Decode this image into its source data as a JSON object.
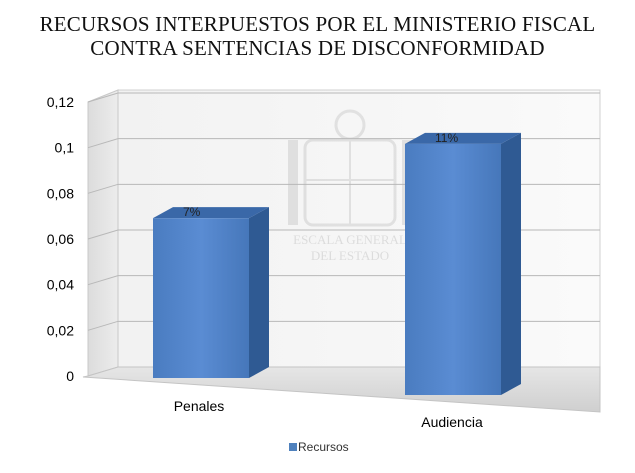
{
  "chart_data": {
    "type": "bar",
    "title_lines": [
      "RECURSOS INTERPUESTOS POR EL MINISTERIO FISCAL",
      "CONTRA SENTENCIAS DE DISCONFORMIDAD"
    ],
    "categories": [
      "Penales",
      "Audiencia"
    ],
    "series": [
      {
        "name": "Recursos",
        "values": [
          0.07,
          0.11
        ],
        "data_labels": [
          "7%",
          "11%"
        ]
      }
    ],
    "ylim": [
      0,
      0.12
    ],
    "yticks": [
      "0",
      "0,02",
      "0,04",
      "0,06",
      "0,08",
      "0,1",
      "0,12"
    ],
    "xlabel": "",
    "ylabel": "",
    "grid": true,
    "legend_position": "bottom",
    "bar_color": "#4f81bd",
    "watermark_lines": [
      "ESCALA GENERAL",
      "DEL ESTADO"
    ]
  }
}
